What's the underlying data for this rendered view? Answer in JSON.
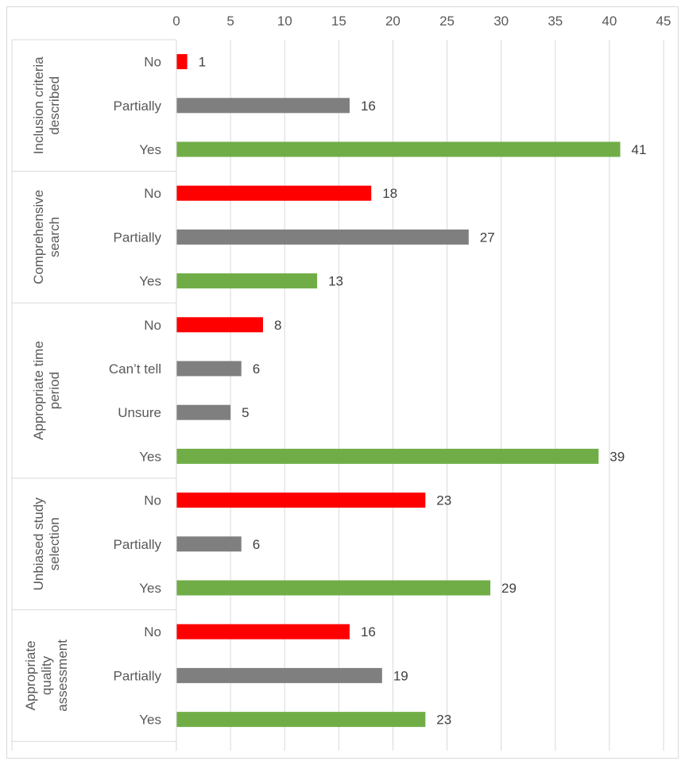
{
  "chart_data": {
    "type": "bar",
    "orientation": "horizontal",
    "xlim": [
      0,
      45
    ],
    "xticks": [
      "0",
      "5",
      "10",
      "15",
      "20",
      "25",
      "30",
      "35",
      "40",
      "45"
    ],
    "x_axis_position": "top",
    "grid": true,
    "legend": "none",
    "colors": {
      "No": "#ff0000",
      "Partially": "#7f7f7f",
      "Can’t tell": "#7f7f7f",
      "Unsure": "#7f7f7f",
      "Yes": "#70ad47"
    },
    "groups": [
      {
        "label_lines": [
          "Inclusion criteria",
          "described"
        ],
        "bars": [
          {
            "label": "No",
            "value": 1
          },
          {
            "label": "Partially",
            "value": 16
          },
          {
            "label": "Yes",
            "value": 41
          }
        ]
      },
      {
        "label_lines": [
          "Comprehensive",
          "search"
        ],
        "bars": [
          {
            "label": "No",
            "value": 18
          },
          {
            "label": "Partially",
            "value": 27
          },
          {
            "label": "Yes",
            "value": 13
          }
        ]
      },
      {
        "label_lines": [
          "Appropriate time",
          "period"
        ],
        "bars": [
          {
            "label": "No",
            "value": 8
          },
          {
            "label": "Can’t tell",
            "value": 6
          },
          {
            "label": "Unsure",
            "value": 5
          },
          {
            "label": "Yes",
            "value": 39
          }
        ]
      },
      {
        "label_lines": [
          "Unbiased study",
          "selection"
        ],
        "bars": [
          {
            "label": "No",
            "value": 23
          },
          {
            "label": "Partially",
            "value": 6
          },
          {
            "label": "Yes",
            "value": 29
          }
        ]
      },
      {
        "label_lines": [
          "Appropriate",
          "quality",
          "assessment"
        ],
        "bars": [
          {
            "label": "No",
            "value": 16
          },
          {
            "label": "Partially",
            "value": 19
          },
          {
            "label": "Yes",
            "value": 23
          }
        ]
      }
    ]
  }
}
